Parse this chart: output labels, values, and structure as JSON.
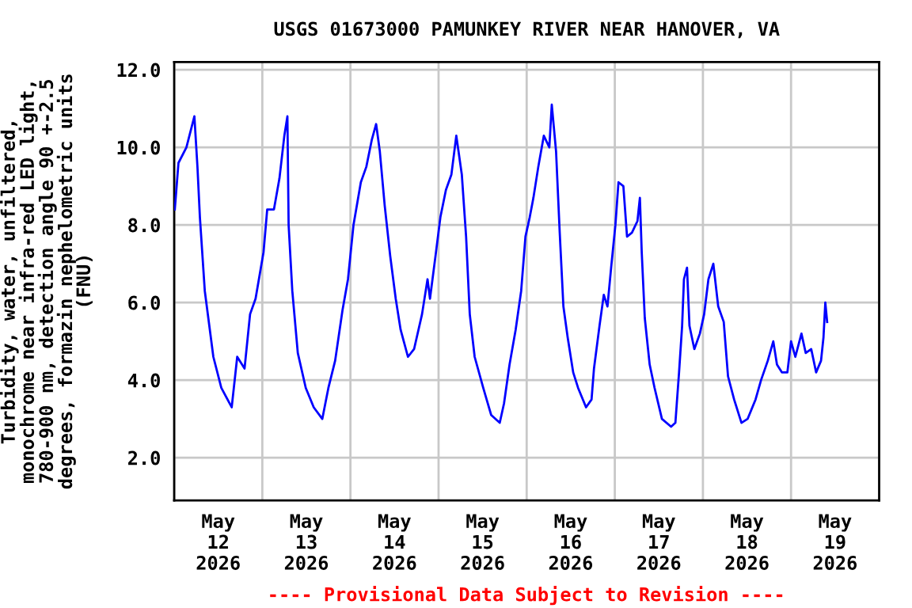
{
  "chart_data": {
    "type": "line",
    "title": "USGS 01673000 PAMUNKEY RIVER NEAR HANOVER, VA",
    "ylabel": "Turbidity, water, unfiltered,\nmonochrome near infra-red LED light,\n780-900 nm, detection angle 90 +-2.5\ndegrees, formazin nephelometric units\n(FNU)",
    "annotations": [
      "---- Provisional Data Subject to Revision ----"
    ],
    "xlim": [
      "2026-05-11T12:00",
      "2026-05-19T12:00"
    ],
    "xticks": [
      {
        "value": "2026-05-11T12:00",
        "label": null
      },
      {
        "value": "2026-05-12T00:00",
        "label": "May\n12\n2026"
      },
      {
        "value": "2026-05-12T12:00",
        "label": null
      },
      {
        "value": "2026-05-13T00:00",
        "label": "May\n13\n2026"
      },
      {
        "value": "2026-05-13T12:00",
        "label": null
      },
      {
        "value": "2026-05-14T00:00",
        "label": "May\n14\n2026"
      },
      {
        "value": "2026-05-14T12:00",
        "label": null
      },
      {
        "value": "2026-05-15T00:00",
        "label": "May\n15\n2026"
      },
      {
        "value": "2026-05-15T12:00",
        "label": null
      },
      {
        "value": "2026-05-16T00:00",
        "label": "May\n16\n2026"
      },
      {
        "value": "2026-05-16T12:00",
        "label": null
      },
      {
        "value": "2026-05-17T00:00",
        "label": "May\n17\n2026"
      },
      {
        "value": "2026-05-17T12:00",
        "label": null
      },
      {
        "value": "2026-05-18T00:00",
        "label": "May\n18\n2026"
      },
      {
        "value": "2026-05-18T12:00",
        "label": null
      },
      {
        "value": "2026-05-19T00:00",
        "label": "May\n19\n2026"
      },
      {
        "value": "2026-05-19T12:00",
        "label": null
      }
    ],
    "ylim": [
      0.9,
      12.2
    ],
    "yticks": [
      {
        "value": 2,
        "label": "2.0"
      },
      {
        "value": 4,
        "label": "4.0"
      },
      {
        "value": 6,
        "label": "6.0"
      },
      {
        "value": 8,
        "label": "8.0"
      },
      {
        "value": 10,
        "label": "10.0"
      },
      {
        "value": 12,
        "label": "12.0"
      }
    ],
    "grid": true,
    "legend": false,
    "marker": "none",
    "line_style": "solid",
    "series": [
      {
        "color": "#0000ff",
        "x": [
          "2026-05-11T12:10",
          "2026-05-11T13:10",
          "2026-05-11T15:20",
          "2026-05-11T17:30",
          "2026-05-11T18:20",
          "2026-05-11T19:00",
          "2026-05-11T20:20",
          "2026-05-11T22:40",
          "2026-05-12T00:50",
          "2026-05-12T03:40",
          "2026-05-12T05:10",
          "2026-05-12T07:10",
          "2026-05-12T08:40",
          "2026-05-12T10:10",
          "2026-05-12T12:20",
          "2026-05-12T13:20",
          "2026-05-12T15:10",
          "2026-05-12T16:40",
          "2026-05-12T18:00",
          "2026-05-12T18:50",
          "2026-05-12T19:10",
          "2026-05-12T20:10",
          "2026-05-12T21:40",
          "2026-05-12T23:50",
          "2026-05-13T02:00",
          "2026-05-13T04:20",
          "2026-05-13T06:00",
          "2026-05-13T07:50",
          "2026-05-13T09:50",
          "2026-05-13T11:20",
          "2026-05-13T12:50",
          "2026-05-13T14:50",
          "2026-05-13T16:20",
          "2026-05-13T17:50",
          "2026-05-13T19:00",
          "2026-05-13T20:00",
          "2026-05-13T21:20",
          "2026-05-13T22:50",
          "2026-05-14T00:20",
          "2026-05-14T01:40",
          "2026-05-14T03:40",
          "2026-05-14T05:20",
          "2026-05-14T07:30",
          "2026-05-14T09:00",
          "2026-05-14T09:40",
          "2026-05-14T11:10",
          "2026-05-14T12:30",
          "2026-05-14T14:00",
          "2026-05-14T15:30",
          "2026-05-14T16:50",
          "2026-05-14T18:20",
          "2026-05-14T19:30",
          "2026-05-14T20:30",
          "2026-05-14T21:50",
          "2026-05-15T00:10",
          "2026-05-15T02:20",
          "2026-05-15T04:40",
          "2026-05-15T05:50",
          "2026-05-15T07:20",
          "2026-05-15T09:00",
          "2026-05-15T10:30",
          "2026-05-15T11:40",
          "2026-05-15T12:50",
          "2026-05-15T13:50",
          "2026-05-15T15:10",
          "2026-05-15T16:40",
          "2026-05-15T18:10",
          "2026-05-15T18:50",
          "2026-05-15T20:00",
          "2026-05-15T21:00",
          "2026-05-15T22:00",
          "2026-05-15T23:10",
          "2026-05-16T00:40",
          "2026-05-16T02:00",
          "2026-05-16T04:10",
          "2026-05-16T05:40",
          "2026-05-16T06:20",
          "2026-05-16T07:50",
          "2026-05-16T09:00",
          "2026-05-16T10:00",
          "2026-05-16T11:00",
          "2026-05-16T12:10",
          "2026-05-16T13:00",
          "2026-05-16T14:20",
          "2026-05-16T15:20",
          "2026-05-16T16:40",
          "2026-05-16T18:10",
          "2026-05-16T18:50",
          "2026-05-16T19:20",
          "2026-05-16T20:10",
          "2026-05-16T21:30",
          "2026-05-16T22:50",
          "2026-05-17T00:50",
          "2026-05-17T03:20",
          "2026-05-17T04:30",
          "2026-05-17T05:30",
          "2026-05-17T06:20",
          "2026-05-17T06:50",
          "2026-05-17T07:40",
          "2026-05-17T08:20",
          "2026-05-17T09:40",
          "2026-05-17T11:10",
          "2026-05-17T12:20",
          "2026-05-17T13:30",
          "2026-05-17T14:50",
          "2026-05-17T16:10",
          "2026-05-17T17:40",
          "2026-05-17T18:50",
          "2026-05-17T20:30",
          "2026-05-17T22:30",
          "2026-05-18T00:10",
          "2026-05-18T02:20",
          "2026-05-18T03:50",
          "2026-05-18T05:40",
          "2026-05-18T07:10",
          "2026-05-18T08:10",
          "2026-05-18T09:30",
          "2026-05-18T11:00",
          "2026-05-18T12:00",
          "2026-05-18T13:10",
          "2026-05-18T14:50",
          "2026-05-18T16:00",
          "2026-05-18T17:30",
          "2026-05-18T18:50",
          "2026-05-18T20:10",
          "2026-05-18T20:50",
          "2026-05-18T21:20",
          "2026-05-18T21:50"
        ],
        "values": [
          8.4,
          9.6,
          10.0,
          10.8,
          9.5,
          8.2,
          6.3,
          4.6,
          3.8,
          3.3,
          4.6,
          4.3,
          5.7,
          6.1,
          7.3,
          8.4,
          8.4,
          9.2,
          10.3,
          10.8,
          8.0,
          6.3,
          4.7,
          3.8,
          3.3,
          3.0,
          3.8,
          4.5,
          5.8,
          6.6,
          8.0,
          9.1,
          9.5,
          10.2,
          10.6,
          9.9,
          8.5,
          7.2,
          6.1,
          5.3,
          4.6,
          4.8,
          5.7,
          6.6,
          6.1,
          7.2,
          8.2,
          8.9,
          9.3,
          10.3,
          9.3,
          7.7,
          5.7,
          4.6,
          3.8,
          3.1,
          2.9,
          3.4,
          4.4,
          5.3,
          6.3,
          7.7,
          8.2,
          8.7,
          9.5,
          10.3,
          10.0,
          11.1,
          9.9,
          7.8,
          5.9,
          5.1,
          4.2,
          3.8,
          3.3,
          3.5,
          4.3,
          5.4,
          6.2,
          5.9,
          6.9,
          8.0,
          9.1,
          9.0,
          7.7,
          7.8,
          8.1,
          8.7,
          7.3,
          5.6,
          4.4,
          3.8,
          3.0,
          2.8,
          2.9,
          4.2,
          5.4,
          6.6,
          6.9,
          5.4,
          4.8,
          5.2,
          5.7,
          6.6,
          7.0,
          5.9,
          5.5,
          4.1,
          3.5,
          2.9,
          3.0,
          3.5,
          4.0,
          4.5,
          5.0,
          4.4,
          4.2,
          4.2,
          5.0,
          4.6,
          5.2,
          4.7,
          4.8,
          4.2,
          4.5,
          5.1,
          6.0,
          5.5
        ]
      }
    ]
  }
}
